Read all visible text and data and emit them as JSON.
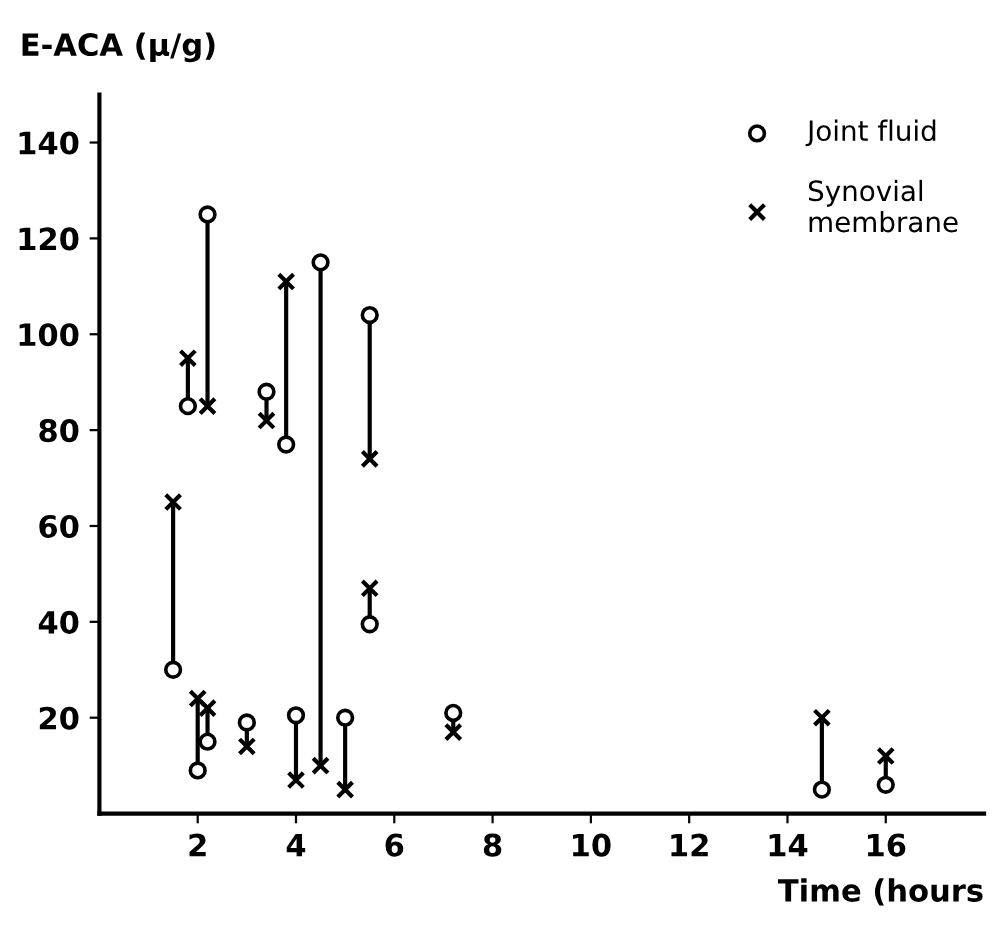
{
  "chart_data": {
    "type": "scatter",
    "ylabel": "E-ACA (μ/g)",
    "xlabel": "Time (hours",
    "xlim": [
      0,
      18
    ],
    "ylim": [
      0,
      150
    ],
    "xticks": [
      2,
      4,
      6,
      8,
      10,
      12,
      14,
      16
    ],
    "yticks": [
      20,
      40,
      60,
      80,
      100,
      120,
      140
    ],
    "grid": false,
    "legend": "top right",
    "series": [
      {
        "type": "line",
        "color": "#000000",
        "marker": "none",
        "x": [
          1.5,
          1.5
        ],
        "values": [
          30,
          65
        ]
      },
      {
        "type": "line",
        "color": "#000000",
        "marker": "none",
        "x": [
          1.8,
          1.8
        ],
        "values": [
          85,
          95
        ]
      },
      {
        "type": "line",
        "color": "#000000",
        "marker": "none",
        "x": [
          2.0,
          2.0
        ],
        "values": [
          9,
          24
        ]
      },
      {
        "type": "line",
        "color": "#000000",
        "marker": "none",
        "x": [
          2.2,
          2.2
        ],
        "values": [
          125,
          85
        ]
      },
      {
        "type": "line",
        "color": "#000000",
        "marker": "none",
        "x": [
          2.2,
          2.2
        ],
        "values": [
          15,
          22
        ]
      },
      {
        "type": "line",
        "color": "#000000",
        "marker": "none",
        "x": [
          3.0,
          3.0
        ],
        "values": [
          19,
          14
        ]
      },
      {
        "type": "line",
        "color": "#000000",
        "marker": "none",
        "x": [
          3.4,
          3.4
        ],
        "values": [
          88,
          82
        ]
      },
      {
        "type": "line",
        "color": "#000000",
        "marker": "none",
        "x": [
          3.8,
          3.8
        ],
        "values": [
          77,
          111
        ]
      },
      {
        "type": "line",
        "color": "#000000",
        "marker": "none",
        "x": [
          4.0,
          4.0
        ],
        "values": [
          20.5,
          7
        ]
      },
      {
        "type": "line",
        "color": "#000000",
        "marker": "none",
        "x": [
          4.5,
          4.5
        ],
        "values": [
          115,
          10
        ]
      },
      {
        "type": "line",
        "color": "#000000",
        "marker": "none",
        "x": [
          5.0,
          5.0
        ],
        "values": [
          20,
          5
        ]
      },
      {
        "type": "line",
        "color": "#000000",
        "marker": "none",
        "x": [
          5.5,
          5.5
        ],
        "values": [
          104,
          74
        ]
      },
      {
        "type": "line",
        "color": "#000000",
        "marker": "none",
        "x": [
          5.5,
          5.5
        ],
        "values": [
          39.5,
          47
        ]
      },
      {
        "type": "line",
        "color": "#000000",
        "marker": "none",
        "x": [
          7.2,
          7.2
        ],
        "values": [
          21,
          17
        ]
      },
      {
        "type": "line",
        "color": "#000000",
        "marker": "none",
        "x": [
          14.7,
          14.7
        ],
        "values": [
          5,
          20
        ]
      },
      {
        "type": "line",
        "color": "#000000",
        "marker": "none",
        "x": [
          16.0,
          16.0
        ],
        "values": [
          6,
          12
        ]
      },
      {
        "name": "Joint fluid",
        "color": "#000000",
        "marker": "circle",
        "x": [
          1.5,
          1.8,
          2.0,
          2.2,
          2.2,
          3.0,
          3.4,
          3.8,
          4.0,
          4.5,
          5.0,
          5.5,
          5.5,
          7.2,
          14.7,
          16.0
        ],
        "values": [
          30,
          85,
          9,
          125,
          15,
          19,
          88,
          77,
          20.5,
          115,
          20,
          104,
          39.5,
          21,
          5,
          6
        ]
      },
      {
        "name": "Synovial\nmembrane",
        "color": "#000000",
        "marker": "cross",
        "x": [
          1.5,
          1.8,
          2.0,
          2.2,
          2.2,
          3.0,
          3.4,
          3.8,
          4.0,
          4.5,
          5.0,
          5.5,
          5.5,
          7.2,
          14.7,
          16.0
        ],
        "values": [
          65,
          95,
          24,
          85,
          22,
          14,
          82,
          111,
          7,
          10,
          5,
          74,
          47,
          17,
          20,
          12
        ]
      }
    ]
  }
}
